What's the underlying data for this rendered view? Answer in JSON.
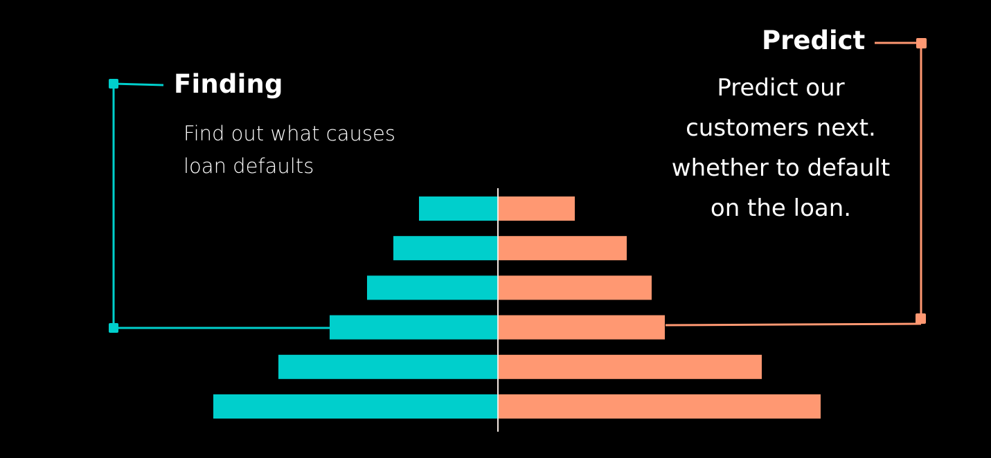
{
  "finding": {
    "title": "Finding",
    "description_lines": [
      "Find out what causes",
      "loan defaults"
    ],
    "color": "#00CFCC"
  },
  "predict": {
    "title": "Predict",
    "description_lines": [
      "Predict our",
      "customers next.",
      "whether to default",
      "on the loan."
    ],
    "color": "#FF9872"
  },
  "chart_data": {
    "type": "bar",
    "orientation": "horizontal-diverging",
    "rows": 6,
    "series": [
      {
        "side": "left",
        "color": "#00CFCC",
        "values": [
          114,
          151,
          189,
          243,
          317,
          411
        ]
      },
      {
        "side": "right",
        "color": "#FF9872",
        "values": [
          111,
          186,
          222,
          241,
          381,
          466
        ]
      }
    ],
    "center_line_color": "#F4E9E4"
  }
}
